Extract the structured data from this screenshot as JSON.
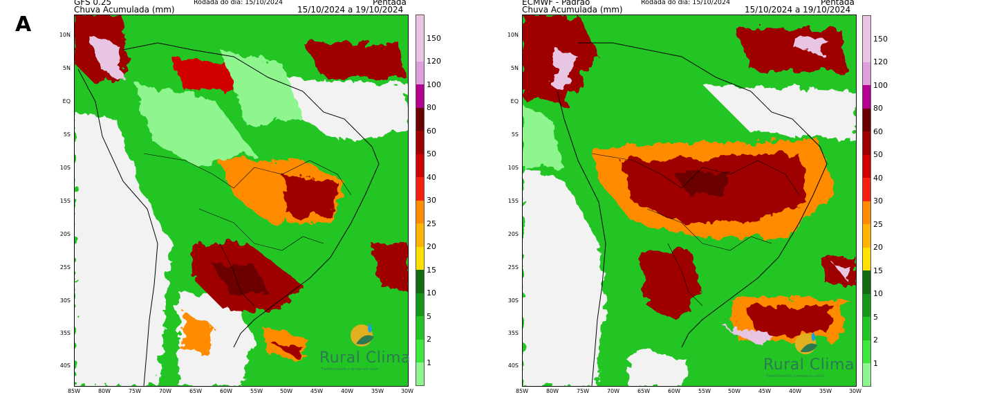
{
  "panel_letter": "A",
  "panels": [
    {
      "model": "GFS 0.25",
      "variable": "Chuva Acumulada (mm)",
      "run": "Rodada do dia: 15/10/2024",
      "period_title": "Pentada",
      "period": "15/10/2024 a 19/10/2024",
      "logo": "Rural Clima",
      "logo_tagline": "Transformando o tempo em valor"
    },
    {
      "model": "ECMWF - Padrão",
      "variable": "Chuva Acumulada (mm)",
      "run": "Rodada do dia: 15/10/2024",
      "period_title": "Pentada",
      "period": "15/10/2024 a 19/10/2024",
      "logo": "Rural Clima",
      "logo_tagline": "Transformando o tempo em valor"
    }
  ],
  "lat_ticks": [
    "10N",
    "5N",
    "EQ",
    "5S",
    "10S",
    "15S",
    "20S",
    "25S",
    "30S",
    "35S",
    "40S"
  ],
  "lon_ticks": [
    "85W",
    "80W",
    "75W",
    "70W",
    "65W",
    "60W",
    "55W",
    "50W",
    "45W",
    "40W",
    "35W",
    "30W"
  ],
  "colorbar": {
    "labels": [
      "150",
      "120",
      "100",
      "80",
      "60",
      "50",
      "40",
      "30",
      "25",
      "20",
      "15",
      "10",
      "5",
      "2",
      "1"
    ],
    "colors": [
      "#e8c6e3",
      "#dda0dd",
      "#b2008f",
      "#6b0000",
      "#9e0000",
      "#d00000",
      "#f52010",
      "#ff8c00",
      "#ffb500",
      "#ffe000",
      "#136b13",
      "#17971a",
      "#22c524",
      "#3fe83f",
      "#8ff58f",
      "#f2f2f2"
    ]
  }
}
